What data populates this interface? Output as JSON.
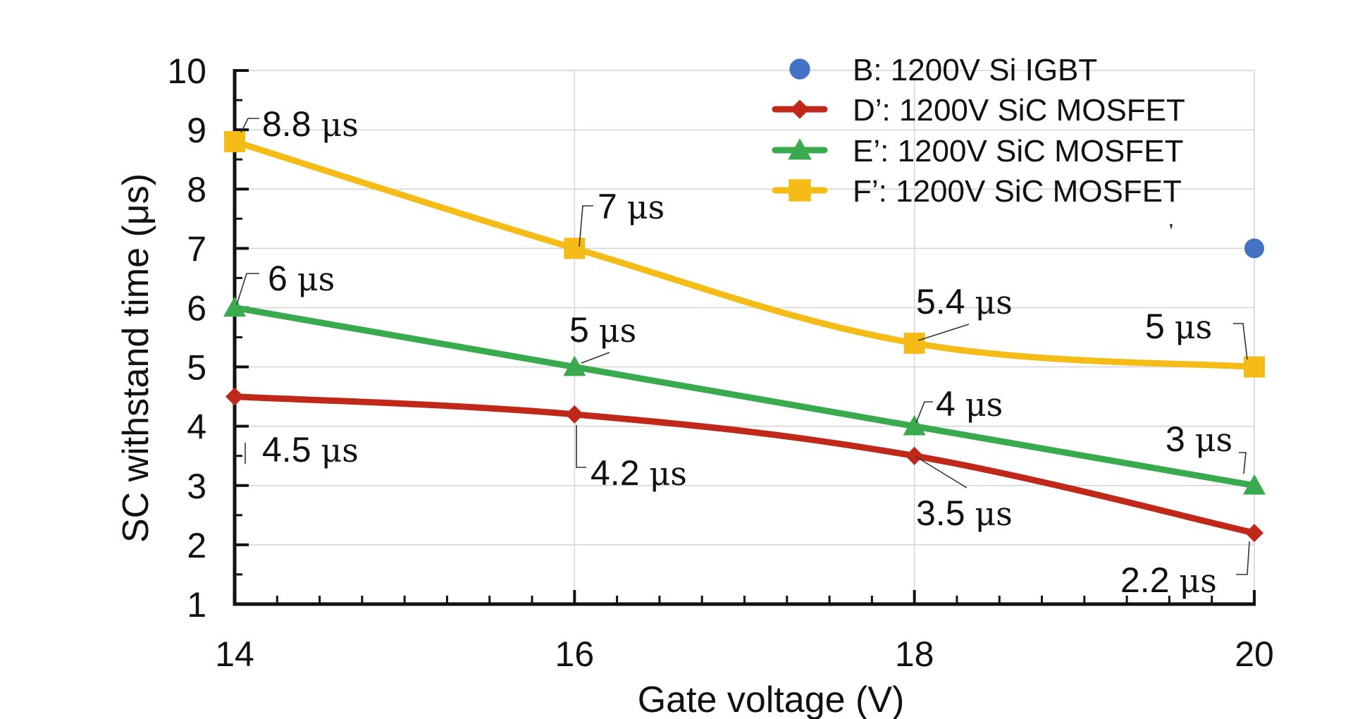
{
  "chart_data": {
    "type": "line",
    "title": "",
    "xlabel": "Gate voltage (V)",
    "ylabel": "SC withstand time (μs)",
    "xlim": [
      14,
      20
    ],
    "ylim": [
      1,
      10
    ],
    "x_ticks": [
      "14",
      "16",
      "18",
      "20"
    ],
    "y_ticks": [
      "1",
      "2",
      "3",
      "4",
      "5",
      "6",
      "7",
      "8",
      "9",
      "10"
    ],
    "grid": true,
    "legend_position": "top-right",
    "unit_label": "μs",
    "series": [
      {
        "name": "B: 1200V Si IGBT",
        "marker": "circle",
        "line": false,
        "color": "#4472c4",
        "points": [
          {
            "x": 20,
            "y": 7
          }
        ],
        "labels": [
          ""
        ]
      },
      {
        "name": "D’: 1200V SiC MOSFET",
        "marker": "diamond",
        "line": true,
        "color": "#c0281a",
        "points": [
          {
            "x": 14,
            "y": 4.5
          },
          {
            "x": 16,
            "y": 4.2
          },
          {
            "x": 18,
            "y": 3.5
          },
          {
            "x": 20,
            "y": 2.2
          }
        ],
        "labels": [
          "4.5",
          "4.2",
          "3.5",
          "2.2"
        ]
      },
      {
        "name": "E’: 1200V SiC MOSFET",
        "marker": "triangle",
        "line": true,
        "color": "#3aaa4f",
        "points": [
          {
            "x": 14,
            "y": 6
          },
          {
            "x": 16,
            "y": 5
          },
          {
            "x": 18,
            "y": 4
          },
          {
            "x": 20,
            "y": 3
          }
        ],
        "labels": [
          "6",
          "5",
          "4",
          "3"
        ]
      },
      {
        "name": "F’: 1200V SiC MOSFET",
        "marker": "square",
        "line": true,
        "color": "#f5bb17",
        "points": [
          {
            "x": 14,
            "y": 8.8
          },
          {
            "x": 16,
            "y": 7
          },
          {
            "x": 18,
            "y": 5.4
          },
          {
            "x": 20,
            "y": 5
          }
        ],
        "labels": [
          "8.8",
          "7",
          "5.4",
          "5"
        ]
      }
    ]
  }
}
